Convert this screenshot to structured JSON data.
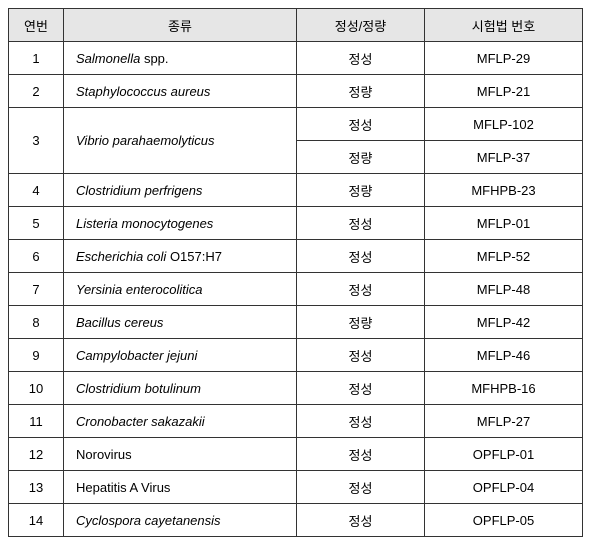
{
  "table": {
    "headers": {
      "no": "연번",
      "species": "종류",
      "type": "정성/정량",
      "method": "시험법 번호"
    },
    "colors": {
      "header_bg": "#e6e6e6",
      "border": "#333333",
      "text": "#000000",
      "bg": "#ffffff"
    },
    "font_size": 13,
    "rows": [
      {
        "no": "1",
        "species": "Salmonella",
        "species_suffix": " spp.",
        "italic": true,
        "type": "정성",
        "method": "MFLP-29"
      },
      {
        "no": "2",
        "species": "Staphylococcus aureus",
        "italic": true,
        "type": "정량",
        "method": "MFLP-21"
      },
      {
        "no": "3",
        "species": "Vibrio parahaemolyticus",
        "italic": true,
        "rowspan": 2,
        "type": "정성",
        "method": "MFLP-102"
      },
      {
        "type": "정량",
        "method": "MFLP-37",
        "continued": true
      },
      {
        "no": "4",
        "species": "Clostridium perfrigens",
        "italic": true,
        "type": "정량",
        "method": "MFHPB-23"
      },
      {
        "no": "5",
        "species": "Listeria monocytogenes",
        "italic": true,
        "type": "정성",
        "method": "MFLP-01"
      },
      {
        "no": "6",
        "species": "Escherichia coli",
        "species_suffix": " O157:H7",
        "italic": true,
        "type": "정성",
        "method": "MFLP-52"
      },
      {
        "no": "7",
        "species": "Yersinia enterocolitica",
        "italic": true,
        "type": "정성",
        "method": "MFLP-48"
      },
      {
        "no": "8",
        "species": "Bacillus cereus",
        "italic": true,
        "type": "정량",
        "method": "MFLP-42"
      },
      {
        "no": "9",
        "species": "Campylobacter jejuni",
        "italic": true,
        "type": "정성",
        "method": "MFLP-46"
      },
      {
        "no": "10",
        "species": "Clostridium botulinum",
        "italic": true,
        "type": "정성",
        "method": "MFHPB-16"
      },
      {
        "no": "11",
        "species": "Cronobacter sakazakii",
        "italic": true,
        "type": "정성",
        "method": "MFLP-27"
      },
      {
        "no": "12",
        "species": "Norovirus",
        "italic": false,
        "type": "정성",
        "method": "OPFLP-01"
      },
      {
        "no": "13",
        "species": "Hepatitis A Virus",
        "italic": false,
        "type": "정성",
        "method": "OPFLP-04"
      },
      {
        "no": "14",
        "species": "Cyclospora cayetanensis",
        "italic": true,
        "type": "정성",
        "method": "OPFLP-05"
      }
    ]
  }
}
